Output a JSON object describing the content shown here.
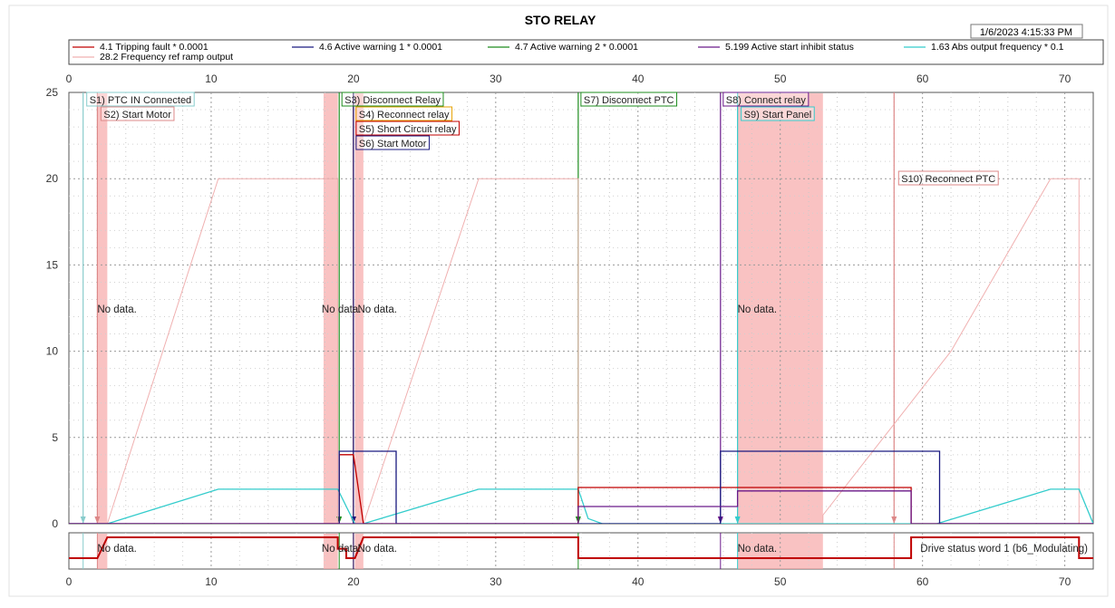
{
  "title": "STO RELAY",
  "timestamp": "1/6/2023 4:15:33 PM",
  "legend": [
    {
      "label": "4.1 Tripping fault * 0.0001",
      "color": "#c00000"
    },
    {
      "label": "4.6 Active warning 1 * 0.0001",
      "color": "#1a1a80"
    },
    {
      "label": "4.7 Active warning 2 * 0.0001",
      "color": "#1e8c1e"
    },
    {
      "label": "5.199 Active start inhibit status",
      "color": "#6a1a8a"
    },
    {
      "label": "1.63 Abs output frequency * 0.1",
      "color": "#33cccc"
    },
    {
      "label": "28.2 Frequency ref ramp output",
      "color": "#f0b0b0"
    }
  ],
  "chart_data": [
    {
      "type": "line",
      "xlim": [
        0,
        72
      ],
      "ylim": [
        0,
        25
      ],
      "xticks": [
        0,
        10,
        20,
        30,
        40,
        50,
        60,
        70
      ],
      "yticks": [
        0,
        5,
        10,
        15,
        20,
        25
      ],
      "grid": true,
      "no_data_regions": [
        {
          "x": [
            2.0,
            2.7
          ],
          "label": "No data."
        },
        {
          "x": [
            17.9,
            18.9
          ],
          "label": "No data."
        },
        {
          "x": [
            20.1,
            20.7
          ],
          "label": "No data."
        },
        {
          "x": [
            47.0,
            53.0
          ],
          "label": "No data."
        }
      ],
      "events": [
        {
          "x": 1.0,
          "label": "S1) PTC IN Connected",
          "color": "#88cccc"
        },
        {
          "x": 2.0,
          "label": "S2)  Start Motor",
          "color": "#dd8888"
        },
        {
          "x": 19.0,
          "label": "S3) Disconnect Relay",
          "color": "#1e8c1e"
        },
        {
          "x": 20.0,
          "label": "S4) Reconnect relay",
          "color": "#e6a000"
        },
        {
          "x": 20.0,
          "label": "S5) Short Circuit relay",
          "color": "#c00000"
        },
        {
          "x": 20.0,
          "label": "S6) Start Motor",
          "color": "#1a1a80"
        },
        {
          "x": 35.8,
          "label": "S7) Disconnect PTC",
          "color": "#1e8c1e"
        },
        {
          "x": 45.8,
          "label": "S8) Connect relay",
          "color": "#6a1a8a"
        },
        {
          "x": 47.0,
          "label": "S9) Start Panel",
          "color": "#33cccc"
        },
        {
          "x": 58.0,
          "label": "S10) Reconnect PTC",
          "color": "#dd8888"
        }
      ],
      "series": [
        {
          "name": "28.2 Frequency ref ramp output",
          "color": "#f0b0b0",
          "points": [
            [
              0,
              0
            ],
            [
              2.7,
              0
            ],
            [
              10.5,
              20
            ],
            [
              18.9,
              20
            ],
            [
              18.9,
              0
            ],
            [
              20.7,
              0
            ],
            [
              28.8,
              20
            ],
            [
              35.8,
              20
            ],
            [
              35.8,
              0
            ],
            [
              53,
              0
            ],
            [
              53,
              0.5
            ],
            [
              62,
              10
            ],
            [
              69,
              20
            ],
            [
              71,
              20
            ],
            [
              71,
              0
            ],
            [
              72,
              0
            ]
          ]
        },
        {
          "name": "1.63 Abs output frequency * 0.1",
          "color": "#33cccc",
          "points": [
            [
              0,
              0
            ],
            [
              2.7,
              0
            ],
            [
              10.5,
              2
            ],
            [
              18.9,
              2
            ],
            [
              19.5,
              1
            ],
            [
              20.1,
              0
            ],
            [
              20.7,
              0
            ],
            [
              28.8,
              2
            ],
            [
              35.8,
              2
            ],
            [
              36.5,
              0.3
            ],
            [
              37.5,
              0
            ],
            [
              47,
              0
            ],
            [
              47.2,
              0
            ],
            [
              61,
              0
            ],
            [
              69,
              2
            ],
            [
              71,
              2
            ],
            [
              72,
              0
            ]
          ]
        },
        {
          "name": "4.1 Tripping fault * 0.0001",
          "color": "#c00000",
          "points": [
            [
              0,
              0
            ],
            [
              19,
              0
            ],
            [
              19,
              4
            ],
            [
              20,
              4
            ],
            [
              20.7,
              0
            ],
            [
              35.8,
              0
            ],
            [
              35.8,
              2.1
            ],
            [
              59.2,
              2.1
            ],
            [
              59.2,
              0
            ],
            [
              72,
              0
            ]
          ]
        },
        {
          "name": "4.6 Active warning 1 * 0.0001",
          "color": "#1a1a80",
          "points": [
            [
              0,
              0
            ],
            [
              19,
              0
            ],
            [
              19,
              4.2
            ],
            [
              23,
              4.2
            ],
            [
              23,
              0
            ],
            [
              45.8,
              0
            ],
            [
              45.8,
              4.2
            ],
            [
              61.2,
              4.2
            ],
            [
              61.2,
              0
            ],
            [
              72,
              0
            ]
          ]
        },
        {
          "name": "5.199 Active start inhibit status",
          "color": "#6a1a8a",
          "points": [
            [
              0,
              0
            ],
            [
              35.8,
              0
            ],
            [
              35.8,
              1
            ],
            [
              47,
              1
            ],
            [
              47,
              1.9
            ],
            [
              59.2,
              1.9
            ],
            [
              59.2,
              0
            ],
            [
              72,
              0
            ]
          ]
        }
      ]
    },
    {
      "type": "line",
      "xlim": [
        0,
        72
      ],
      "xticks": [
        0,
        10,
        20,
        30,
        40,
        50,
        60,
        70
      ],
      "grid": true,
      "no_data_regions": [
        {
          "x": [
            2.0,
            2.7
          ],
          "label": "No data."
        },
        {
          "x": [
            17.9,
            18.9
          ],
          "label": "No data."
        },
        {
          "x": [
            20.1,
            20.7
          ],
          "label": "No data."
        },
        {
          "x": [
            47.0,
            53.0
          ],
          "label": "No data."
        }
      ],
      "series": [
        {
          "name": "Drive status word 1 (b6_Modulating)",
          "color": "#c00000",
          "points": [
            [
              0,
              0
            ],
            [
              2,
              0
            ],
            [
              2.7,
              1
            ],
            [
              18.9,
              1
            ],
            [
              18.9,
              0.45
            ],
            [
              19.5,
              0.45
            ],
            [
              19.5,
              0
            ],
            [
              20.1,
              0
            ],
            [
              20.7,
              1
            ],
            [
              35.8,
              1
            ],
            [
              35.8,
              0
            ],
            [
              59.2,
              0
            ],
            [
              59.2,
              1
            ],
            [
              71,
              1
            ],
            [
              71,
              0
            ],
            [
              72,
              0
            ]
          ]
        }
      ]
    }
  ]
}
